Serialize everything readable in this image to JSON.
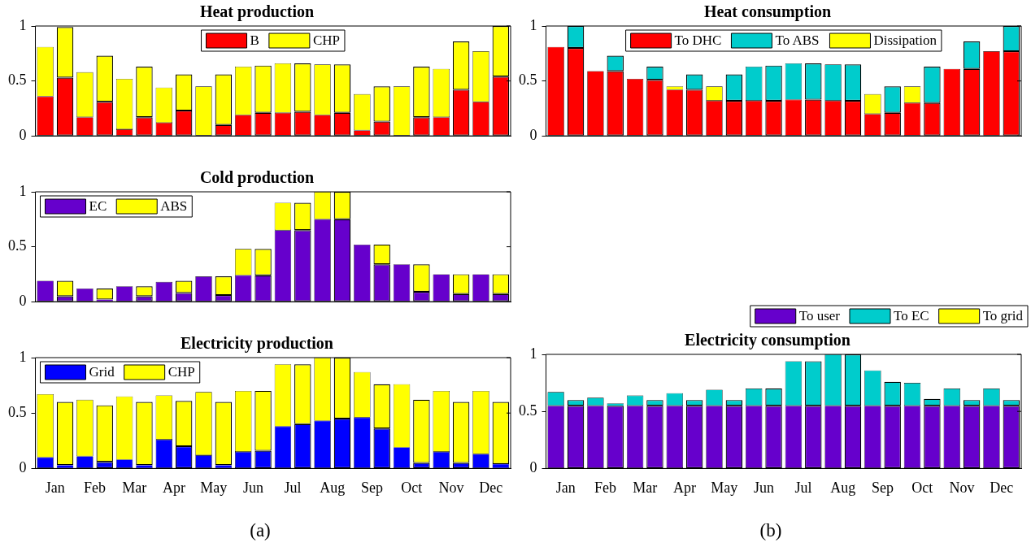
{
  "chart_data": [
    {
      "type": "bar",
      "title": "Heat production",
      "stacked": true,
      "legend": "top",
      "tick_labels": "y",
      "ylim": [
        0,
        1
      ],
      "yticks": [
        0,
        0.5,
        1
      ],
      "categories": [
        null,
        null,
        null,
        null,
        null,
        null,
        null,
        null,
        null,
        null,
        null,
        null,
        null,
        null,
        null,
        null,
        null,
        null,
        null,
        null,
        null,
        null,
        null,
        null
      ],
      "series": [
        {
          "name": "B",
          "color": "#ff0000",
          "values": [
            0.36,
            0.53,
            0.17,
            0.31,
            0.06,
            0.17,
            0.12,
            0.23,
            0,
            0.1,
            0.19,
            0.21,
            0.21,
            0.22,
            0.19,
            0.21,
            0.05,
            0.13,
            0,
            0.17,
            0.17,
            0.42,
            0.31,
            0.54
          ]
        },
        {
          "name": "CHP",
          "color": "#ffff00",
          "values": [
            0.45,
            0.46,
            0.41,
            0.42,
            0.46,
            0.46,
            0.32,
            0.33,
            0.45,
            0.46,
            0.44,
            0.43,
            0.45,
            0.44,
            0.46,
            0.44,
            0.33,
            0.32,
            0.45,
            0.46,
            0.44,
            0.44,
            0.46,
            0.46
          ]
        }
      ]
    },
    {
      "type": "bar",
      "title": "Heat consumption",
      "stacked": true,
      "legend": "top",
      "tick_labels": "y",
      "ylim": [
        0,
        1
      ],
      "yticks": [
        0,
        0.5,
        1
      ],
      "categories": [
        null,
        null,
        null,
        null,
        null,
        null,
        null,
        null,
        null,
        null,
        null,
        null,
        null,
        null,
        null,
        null,
        null,
        null,
        null,
        null,
        null,
        null,
        null,
        null
      ],
      "series": [
        {
          "name": "To DHC",
          "color": "#ff0000",
          "values": [
            0.81,
            0.8,
            0.59,
            0.59,
            0.52,
            0.51,
            0.42,
            0.42,
            0.32,
            0.32,
            0.32,
            0.32,
            0.33,
            0.33,
            0.32,
            0.32,
            0.2,
            0.21,
            0.3,
            0.3,
            0.61,
            0.61,
            0.77,
            0.77
          ]
        },
        {
          "name": "To ABS",
          "color": "#00cccc",
          "values": [
            0,
            0.2,
            0,
            0.14,
            0,
            0.12,
            0,
            0.14,
            0,
            0.24,
            0.31,
            0.32,
            0.33,
            0.33,
            0.33,
            0.33,
            0,
            0.24,
            0,
            0.33,
            0,
            0.25,
            0,
            0.23
          ]
        },
        {
          "name": "Dissipation",
          "color": "#ffff00",
          "values": [
            0,
            0,
            0,
            0,
            0,
            0,
            0.03,
            0,
            0.13,
            0,
            0,
            0,
            0,
            0,
            0,
            0,
            0.18,
            0,
            0.15,
            0,
            0,
            0,
            0,
            0
          ]
        }
      ]
    },
    {
      "type": "bar",
      "title": "Cold production",
      "stacked": true,
      "legend": "top left",
      "tick_labels": "y",
      "ylim": [
        0,
        1
      ],
      "yticks": [
        0,
        0.5,
        1
      ],
      "categories": [
        null,
        null,
        null,
        null,
        null,
        null,
        null,
        null,
        null,
        null,
        null,
        null,
        null,
        null,
        null,
        null,
        null,
        null,
        null,
        null,
        null,
        null,
        null,
        null
      ],
      "series": [
        {
          "name": "EC",
          "color": "#6600cc",
          "values": [
            0.19,
            0.05,
            0.12,
            0.02,
            0.14,
            0.05,
            0.18,
            0.08,
            0.23,
            0.06,
            0.24,
            0.24,
            0.65,
            0.65,
            0.75,
            0.75,
            0.52,
            0.34,
            0.34,
            0.09,
            0.25,
            0.07,
            0.25,
            0.07
          ]
        },
        {
          "name": "ABS",
          "color": "#ffff00",
          "values": [
            0,
            0.14,
            0,
            0.1,
            0,
            0.09,
            0,
            0.11,
            0,
            0.17,
            0.24,
            0.24,
            0.25,
            0.25,
            0.25,
            0.25,
            0,
            0.18,
            0,
            0.25,
            0,
            0.18,
            0,
            0.18
          ]
        }
      ]
    },
    {
      "type": "bar",
      "title": "Electricity production",
      "stacked": true,
      "legend": "top left",
      "ylim": [
        0,
        1
      ],
      "yticks": [
        0,
        0.5,
        1
      ],
      "annotations": [
        "(a)"
      ],
      "categories": [
        "Jan",
        null,
        "Feb",
        null,
        "Mar",
        null,
        "Apr",
        null,
        "May",
        null,
        "Jun",
        null,
        "Jul",
        null,
        "Aug",
        null,
        "Sep",
        null,
        "Oct",
        null,
        "Nov",
        null,
        "Dec",
        null
      ],
      "series": [
        {
          "name": "Grid",
          "color": "#0000ff",
          "values": [
            0.1,
            0.03,
            0.11,
            0.06,
            0.08,
            0.03,
            0.26,
            0.2,
            0.12,
            0.03,
            0.15,
            0.16,
            0.38,
            0.4,
            0.43,
            0.45,
            0.46,
            0.36,
            0.19,
            0.05,
            0.15,
            0.05,
            0.13,
            0.04
          ]
        },
        {
          "name": "CHP",
          "color": "#ffff00",
          "values": [
            0.57,
            0.57,
            0.51,
            0.51,
            0.57,
            0.57,
            0.4,
            0.41,
            0.57,
            0.57,
            0.55,
            0.54,
            0.56,
            0.54,
            0.57,
            0.55,
            0.41,
            0.4,
            0.57,
            0.57,
            0.55,
            0.55,
            0.57,
            0.56
          ]
        }
      ]
    },
    {
      "type": "bar",
      "title": "Electricity consumption",
      "stacked": true,
      "legend": "top right",
      "ylim": [
        0,
        1
      ],
      "yticks": [
        0,
        0.5,
        1
      ],
      "annotations": [
        "(b)"
      ],
      "categories": [
        "Jan",
        null,
        "Feb",
        null,
        "Mar",
        null,
        "Apr",
        null,
        "May",
        null,
        "Jun",
        null,
        "Jul",
        null,
        "Aug",
        null,
        "Sep",
        null,
        "Oct",
        null,
        "Nov",
        null,
        "Dec",
        null
      ],
      "series": [
        {
          "name": "To user",
          "color": "#6600cc",
          "values": [
            0.55,
            0.55,
            0.55,
            0.55,
            0.55,
            0.55,
            0.55,
            0.55,
            0.55,
            0.55,
            0.55,
            0.55,
            0.55,
            0.55,
            0.55,
            0.55,
            0.55,
            0.55,
            0.55,
            0.55,
            0.55,
            0.55,
            0.55,
            0.55
          ]
        },
        {
          "name": "To EC",
          "color": "#00cccc",
          "values": [
            0.12,
            0.05,
            0.07,
            0.02,
            0.09,
            0.05,
            0.11,
            0.05,
            0.14,
            0.05,
            0.15,
            0.15,
            0.39,
            0.39,
            0.45,
            0.45,
            0.31,
            0.21,
            0.2,
            0.06,
            0.15,
            0.05,
            0.15,
            0.05
          ]
        },
        {
          "name": "To grid",
          "color": "#ffff00",
          "values": [
            0,
            0,
            0,
            0,
            0,
            0,
            0,
            0,
            0,
            0,
            0,
            0,
            0,
            0,
            0,
            0,
            0,
            0,
            0,
            0,
            0,
            0,
            0,
            0
          ]
        }
      ]
    }
  ]
}
